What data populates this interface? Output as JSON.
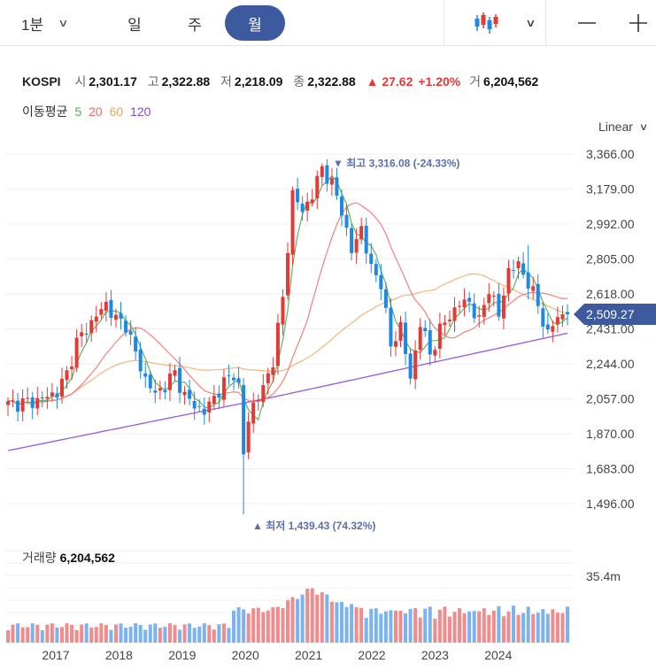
{
  "toolbar": {
    "interval": "1분",
    "day": "일",
    "week": "주",
    "month": "월",
    "chart_type_icon": "candlestick-icon",
    "zoom_out": "—",
    "zoom_in": "+"
  },
  "header": {
    "symbol": "KOSPI",
    "open_label": "시",
    "open": "2,301.17",
    "high_label": "고",
    "high": "2,322.88",
    "low_label": "저",
    "low": "2,218.09",
    "close_label": "종",
    "close": "2,322.88",
    "change": "▲ 27.62",
    "change_pct": "+1.20%",
    "volume_label": "거",
    "volume": "6,204,562"
  },
  "moving_average": {
    "label": "이동평균",
    "periods": [
      "5",
      "20",
      "60",
      "120"
    ]
  },
  "scale": "Linear",
  "colors": {
    "up": "#e53935",
    "down": "#1e88e5",
    "ma5": "#4caf50",
    "ma20": "#ef6c6c",
    "ma60": "#f0a35e",
    "ma120": "#8e44d6",
    "accent": "#3d5a9e"
  },
  "volume_panel": {
    "label": "거래량",
    "value": "6,204,562",
    "max_label": "35.4m"
  },
  "chart_data": {
    "type": "candlestick",
    "price_ticks": [
      "3,366.00",
      "3,179.00",
      "2,992.00",
      "2,805.00",
      "2,618.00",
      "2,431.00",
      "2,244.00",
      "2,057.00",
      "1,870.00",
      "1,683.00",
      "1,496.00"
    ],
    "ylim": [
      1496,
      3366
    ],
    "x_ticks": [
      "2017",
      "2018",
      "2019",
      "2020",
      "2021",
      "2022",
      "2023",
      "2024"
    ],
    "current_price": "2,509.27",
    "max_annotation": {
      "text": "▼ 최고 3,316.08 (-24.33%)",
      "value": 3316.08
    },
    "min_annotation": {
      "text": "▲ 최저 1,439.43 (74.32%)",
      "value": 1439.43
    },
    "close_keypoints": [
      [
        0,
        2026
      ],
      [
        6,
        2047
      ],
      [
        10,
        2092
      ],
      [
        12,
        2191
      ],
      [
        14,
        2360
      ],
      [
        16,
        2430
      ],
      [
        18,
        2500
      ],
      [
        20,
        2566
      ],
      [
        22,
        2480
      ],
      [
        24,
        2456
      ],
      [
        26,
        2295
      ],
      [
        28,
        2163
      ],
      [
        30,
        2080
      ],
      [
        32,
        2129
      ],
      [
        34,
        2195
      ],
      [
        36,
        2070
      ],
      [
        38,
        2024
      ],
      [
        40,
        1986
      ],
      [
        42,
        2065
      ],
      [
        44,
        2140
      ],
      [
        46,
        2197
      ],
      [
        47,
        2119
      ],
      [
        48,
        1754
      ],
      [
        49,
        1947
      ],
      [
        50,
        2029
      ],
      [
        52,
        2108
      ],
      [
        54,
        2267
      ],
      [
        56,
        2591
      ],
      [
        57,
        2873
      ],
      [
        58,
        3152
      ],
      [
        60,
        3061
      ],
      [
        62,
        3147
      ],
      [
        64,
        3296
      ],
      [
        66,
        3202
      ],
      [
        68,
        3069
      ],
      [
        70,
        2839
      ],
      [
        72,
        2977
      ],
      [
        74,
        2745
      ],
      [
        76,
        2685
      ],
      [
        78,
        2332
      ],
      [
        80,
        2451
      ],
      [
        82,
        2155
      ],
      [
        84,
        2472
      ],
      [
        86,
        2293
      ],
      [
        88,
        2425
      ],
      [
        90,
        2501
      ],
      [
        92,
        2565
      ],
      [
        94,
        2577
      ],
      [
        96,
        2465
      ],
      [
        98,
        2655
      ],
      [
        100,
        2497
      ],
      [
        102,
        2747
      ],
      [
        104,
        2770
      ],
      [
        106,
        2680
      ],
      [
        108,
        2556
      ],
      [
        110,
        2399
      ],
      [
        112,
        2500
      ],
      [
        114,
        2509
      ]
    ],
    "volume_ylim": [
      0,
      35.4
    ]
  }
}
